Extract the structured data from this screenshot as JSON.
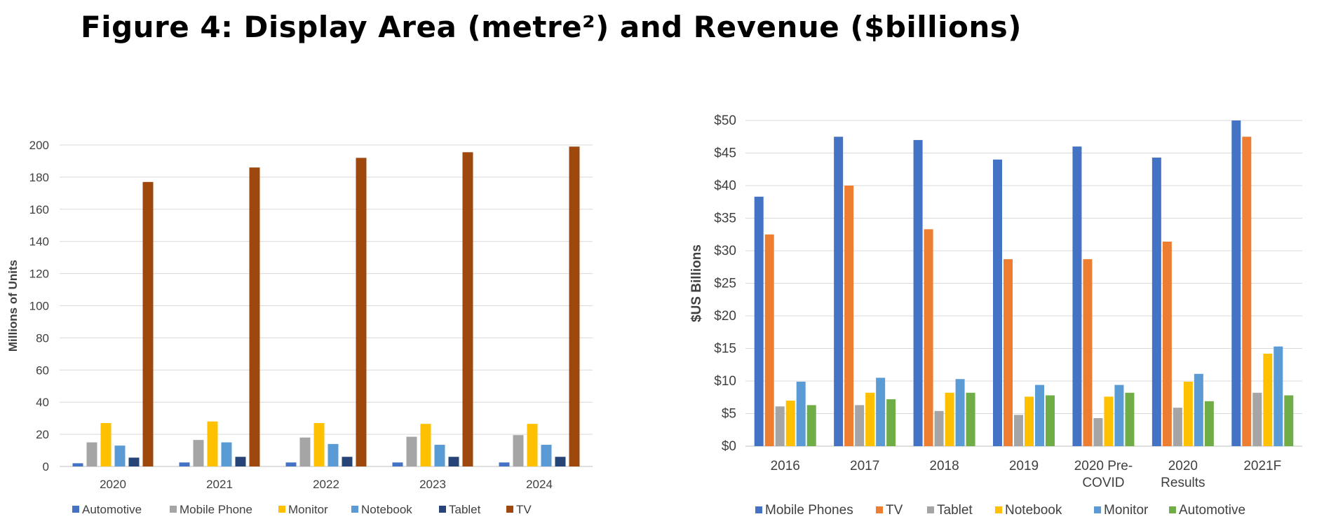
{
  "page": {
    "title": "Figure 4: Display Area (metre²) and Revenue  ($billions)"
  },
  "chart_data": [
    {
      "type": "bar",
      "title": "",
      "xlabel": "",
      "ylabel": "Millions of Units",
      "ylim": [
        0,
        200
      ],
      "yticks": [
        0,
        20,
        40,
        60,
        80,
        100,
        120,
        140,
        160,
        180,
        200
      ],
      "ytick_labels": [
        "0",
        "20",
        "40",
        "60",
        "80",
        "100",
        "120",
        "140",
        "160",
        "180",
        "200"
      ],
      "grid": true,
      "legend_position": "bottom",
      "categories": [
        "2020",
        "2021",
        "2022",
        "2023",
        "2024"
      ],
      "series": [
        {
          "name": "Automotive",
          "color": "#4472c4",
          "values": [
            2,
            2.5,
            2.5,
            2.5,
            2.5
          ]
        },
        {
          "name": "Mobile Phone",
          "color": "#a5a5a5",
          "values": [
            15,
            16.5,
            18,
            18.5,
            19.5
          ]
        },
        {
          "name": "Monitor",
          "color": "#ffc000",
          "values": [
            27,
            28,
            27,
            26.5,
            26.5
          ]
        },
        {
          "name": "Notebook",
          "color": "#5b9bd5",
          "values": [
            13,
            15,
            14,
            13.5,
            13.5
          ]
        },
        {
          "name": "Tablet",
          "color": "#264478",
          "values": [
            5.5,
            6,
            6,
            6,
            6
          ]
        },
        {
          "name": "TV",
          "color": "#9e480e",
          "values": [
            177,
            186,
            192,
            195.5,
            199
          ]
        }
      ]
    },
    {
      "type": "bar",
      "title": "",
      "xlabel": "",
      "ylabel": "$US Billions",
      "ylim": [
        0,
        50
      ],
      "yticks": [
        0,
        5,
        10,
        15,
        20,
        25,
        30,
        35,
        40,
        45,
        50
      ],
      "ytick_labels": [
        "$0",
        "$5",
        "$10",
        "$15",
        "$20",
        "$25",
        "$30",
        "$35",
        "$40",
        "$45",
        "$50"
      ],
      "grid": true,
      "legend_position": "bottom",
      "categories": [
        [
          "2016"
        ],
        [
          "2017"
        ],
        [
          "2018"
        ],
        [
          "2019"
        ],
        [
          "2020 Pre-",
          "COVID"
        ],
        [
          "2020",
          "Results"
        ],
        [
          "2021F"
        ]
      ],
      "series": [
        {
          "name": "Mobile Phones",
          "color": "#4472c4",
          "values": [
            38.3,
            47.5,
            47,
            44,
            46,
            44.3,
            50
          ]
        },
        {
          "name": "TV",
          "color": "#ed7d31",
          "values": [
            32.5,
            40,
            33.3,
            28.7,
            28.7,
            31.4,
            47.5
          ]
        },
        {
          "name": "Tablet",
          "color": "#a5a5a5",
          "values": [
            6.1,
            6.3,
            5.4,
            4.8,
            4.3,
            5.9,
            8.2
          ]
        },
        {
          "name": "Notebook",
          "color": "#ffc000",
          "values": [
            7,
            8.2,
            8.2,
            7.6,
            7.6,
            9.9,
            14.2
          ]
        },
        {
          "name": "Monitor",
          "color": "#5b9bd5",
          "values": [
            9.9,
            10.5,
            10.3,
            9.4,
            9.4,
            11.1,
            15.3
          ]
        },
        {
          "name": "Automotive",
          "color": "#70ad47",
          "values": [
            6.3,
            7.2,
            8.2,
            7.8,
            8.2,
            6.9,
            7.8
          ]
        }
      ]
    }
  ]
}
